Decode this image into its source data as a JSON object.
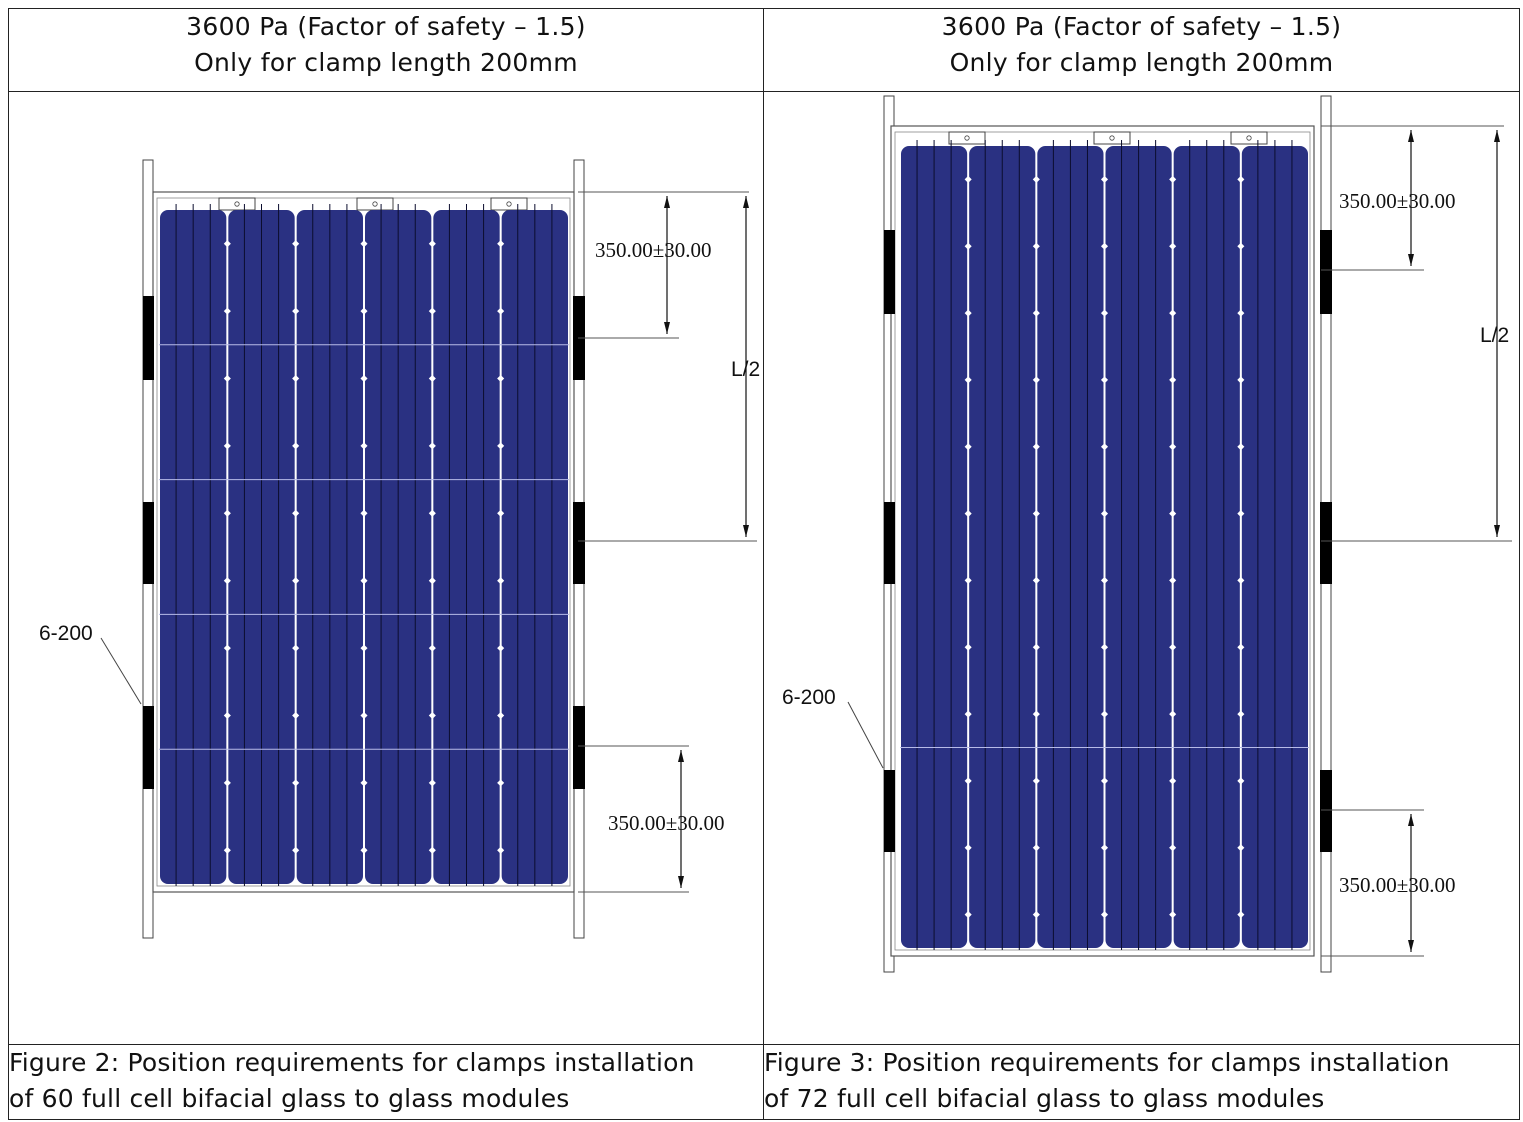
{
  "panels": [
    {
      "header_line1": "3600 Pa (Factor of safety – 1.5)",
      "header_line2": "Only for clamp length 200mm",
      "caption_line1": "Figure 2: Position requirements for clamps installation",
      "caption_line2": "of 60 full cell bifacial glass to glass modules",
      "dim_top": "350.00±30.00",
      "dim_half": "L/2",
      "dim_bottom": "350.00±30.00",
      "clamp_label": "6-200",
      "cell_columns": 6,
      "cell_rows": 10
    },
    {
      "header_line1": "3600 Pa (Factor of safety – 1.5)",
      "header_line2": "Only for clamp length 200mm",
      "caption_line1": "Figure 3: Position requirements for clamps installation",
      "caption_line2": "of 72 full cell bifacial glass to glass modules",
      "dim_top": "350.00±30.00",
      "dim_half": "L/2",
      "dim_bottom": "350.00±30.00",
      "clamp_label": "6-200",
      "cell_columns": 6,
      "cell_rows": 12
    }
  ],
  "colors": {
    "cell_blue": "#2a3182",
    "clamp_black": "#000000",
    "frame_line": "#555555"
  }
}
